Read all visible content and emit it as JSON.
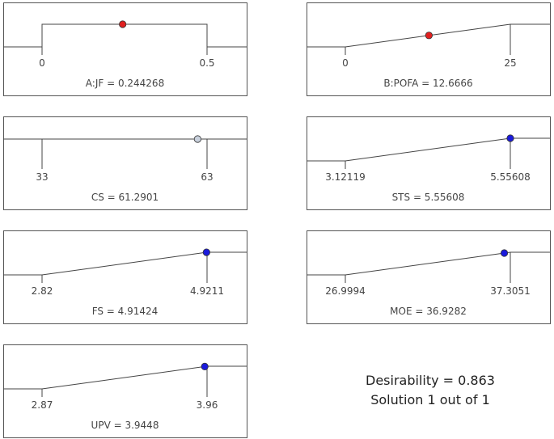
{
  "chart_data": [
    {
      "type": "line",
      "name": "A:JF",
      "caption": "A:JF = 0.244268",
      "shape": "range",
      "low": 0,
      "high": 0.5,
      "tick_labels": [
        "0",
        "0.5"
      ],
      "value": 0.244268,
      "point_color": "#e02020"
    },
    {
      "type": "line",
      "name": "B:POFA",
      "caption": "B:POFA = 12.6666",
      "shape": "ramp",
      "low": 0,
      "high": 25,
      "tick_labels": [
        "0",
        "25"
      ],
      "value": 12.6666,
      "point_color": "#e02020"
    },
    {
      "type": "line",
      "name": "CS",
      "caption": "CS = 61.2901",
      "shape": "flat",
      "low": 33,
      "high": 63,
      "tick_labels": [
        "33",
        "63"
      ],
      "value": 61.2901,
      "point_color": "#c8d0dc"
    },
    {
      "type": "line",
      "name": "STS",
      "caption": "STS = 5.55608",
      "shape": "ramp",
      "low": 3.12119,
      "high": 5.55608,
      "tick_labels": [
        "3.12119",
        "5.55608"
      ],
      "value": 5.55608,
      "point_color": "#1a1adc"
    },
    {
      "type": "line",
      "name": "FS",
      "caption": "FS = 4.91424",
      "shape": "ramp",
      "low": 2.82,
      "high": 4.9211,
      "tick_labels": [
        "2.82",
        "4.9211"
      ],
      "value": 4.91424,
      "point_color": "#1a1adc"
    },
    {
      "type": "line",
      "name": "MOE",
      "caption": "MOE = 36.9282",
      "shape": "ramp",
      "low": 26.9994,
      "high": 37.3051,
      "tick_labels": [
        "26.9994",
        "37.3051"
      ],
      "value": 36.9282,
      "point_color": "#1a1adc"
    },
    {
      "type": "line",
      "name": "UPV",
      "caption": "UPV = 3.9448",
      "shape": "ramp",
      "low": 2.87,
      "high": 3.96,
      "tick_labels": [
        "2.87",
        "3.96"
      ],
      "value": 3.9448,
      "point_color": "#1a1adc"
    }
  ],
  "summary": {
    "desirability": "Desirability = 0.863",
    "solution": "Solution 1 out of 1"
  }
}
